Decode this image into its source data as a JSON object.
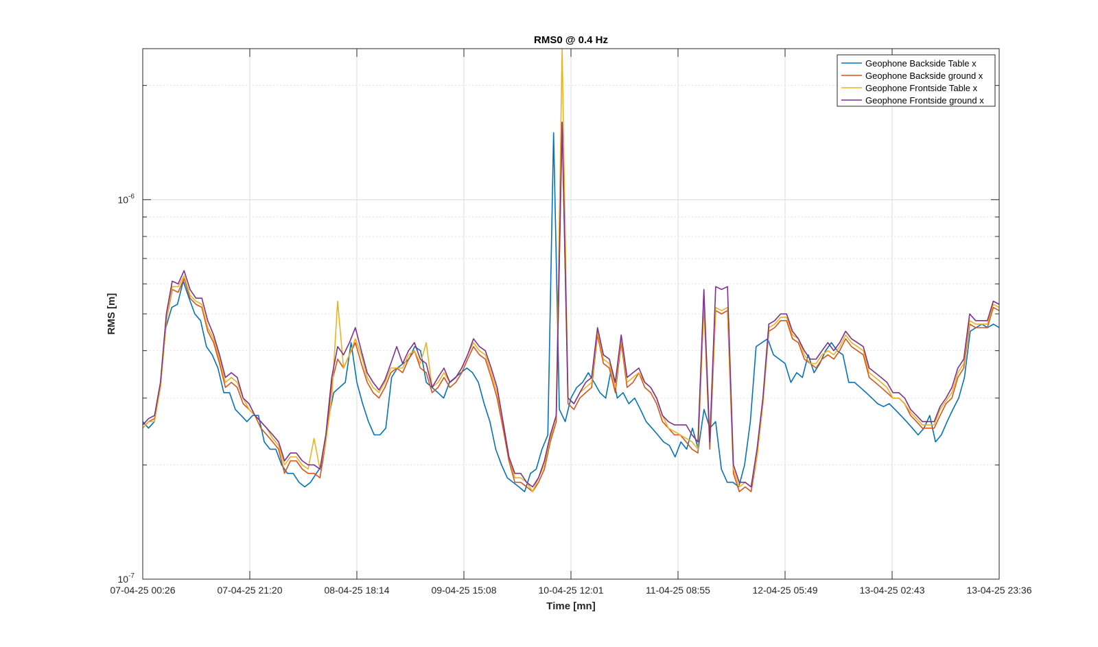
{
  "chart_data": {
    "type": "line",
    "title": "RMS0 @ 0.4 Hz",
    "xlabel": "Time [mn]",
    "ylabel": "RMS [m]",
    "yscale": "log",
    "ylim": [
      1e-07,
      2.5e-06
    ],
    "grid": true,
    "legend_position": "top-right",
    "x_tick_labels": [
      "07-04-25 00:26",
      "07-04-25 21:20",
      "08-04-25 18:14",
      "09-04-25 15:08",
      "10-04-25 12:01",
      "11-04-25 08:55",
      "12-04-25 05:49",
      "13-04-25 02:43",
      "13-04-25 23:36"
    ],
    "y_tick_labels": [
      {
        "base": "10",
        "exp": "-7",
        "value": 1e-07
      },
      {
        "base": "10",
        "exp": "-6",
        "value": 1e-06
      }
    ],
    "series": [
      {
        "name": "Geophone Backside Table x",
        "color": "#0072BD",
        "values": [
          2.6e-07,
          2.5e-07,
          2.6e-07,
          3.2e-07,
          4.6e-07,
          5.2e-07,
          5.3e-07,
          6.1e-07,
          5.5e-07,
          5e-07,
          4.8e-07,
          4.1e-07,
          3.9e-07,
          3.6e-07,
          3.1e-07,
          3.1e-07,
          2.8e-07,
          2.7e-07,
          2.6e-07,
          2.7e-07,
          2.7e-07,
          2.3e-07,
          2.2e-07,
          2.2e-07,
          2e-07,
          1.9e-07,
          1.9e-07,
          1.8e-07,
          1.75e-07,
          1.8e-07,
          1.9e-07,
          2e-07,
          2.6e-07,
          3.1e-07,
          3.2e-07,
          3.3e-07,
          4.2e-07,
          3.3e-07,
          2.9e-07,
          2.6e-07,
          2.4e-07,
          2.4e-07,
          2.5e-07,
          3.4e-07,
          3.6e-07,
          3.7e-07,
          3.8e-07,
          4.1e-07,
          4e-07,
          3.3e-07,
          3.2e-07,
          3.1e-07,
          3e-07,
          3.3e-07,
          3.4e-07,
          3.5e-07,
          3.6e-07,
          3.5e-07,
          3.3e-07,
          2.9e-07,
          2.6e-07,
          2.2e-07,
          2e-07,
          1.85e-07,
          1.8e-07,
          1.75e-07,
          1.7e-07,
          1.9e-07,
          1.95e-07,
          2.2e-07,
          2.4e-07,
          1.5e-06,
          2.8e-07,
          2.6e-07,
          3e-07,
          3.2e-07,
          3.3e-07,
          3.5e-07,
          3.3e-07,
          3.1e-07,
          3e-07,
          3.6e-07,
          3e-07,
          3.1e-07,
          2.9e-07,
          3e-07,
          2.8e-07,
          2.6e-07,
          2.5e-07,
          2.4e-07,
          2.3e-07,
          2.25e-07,
          2.1e-07,
          2.3e-07,
          2.2e-07,
          2.5e-07,
          2.2e-07,
          2.8e-07,
          2.5e-07,
          2.6e-07,
          1.95e-07,
          1.8e-07,
          1.8e-07,
          1.75e-07,
          2e-07,
          2.6e-07,
          4.1e-07,
          4.2e-07,
          4.3e-07,
          3.9e-07,
          3.8e-07,
          3.7e-07,
          3.3e-07,
          3.5e-07,
          3.4e-07,
          3.9e-07,
          3.5e-07,
          3.7e-07,
          4e-07,
          4.2e-07,
          4e-07,
          3.9e-07,
          3.3e-07,
          3.3e-07,
          3.2e-07,
          3.1e-07,
          3e-07,
          2.9e-07,
          2.85e-07,
          2.9e-07,
          2.8e-07,
          2.7e-07,
          2.6e-07,
          2.5e-07,
          2.4e-07,
          2.5e-07,
          2.7e-07,
          2.3e-07,
          2.4e-07,
          2.6e-07,
          2.8e-07,
          3e-07,
          3.4e-07,
          4.5e-07,
          4.6e-07,
          4.7e-07,
          4.6e-07,
          4.7e-07,
          4.6e-07
        ]
      },
      {
        "name": "Geophone Backside ground x",
        "color": "#D95319",
        "values": [
          2.5e-07,
          2.6e-07,
          2.65e-07,
          3.2e-07,
          4.8e-07,
          5.8e-07,
          5.7e-07,
          6.2e-07,
          5.5e-07,
          5.3e-07,
          5.2e-07,
          4.5e-07,
          4.2e-07,
          3.7e-07,
          3.2e-07,
          3.3e-07,
          3.2e-07,
          2.9e-07,
          2.8e-07,
          2.7e-07,
          2.5e-07,
          2.4e-07,
          2.3e-07,
          2.2e-07,
          1.9e-07,
          2.05e-07,
          2.05e-07,
          1.95e-07,
          1.9e-07,
          1.9e-07,
          1.85e-07,
          2.3e-07,
          3.3e-07,
          3.8e-07,
          3.6e-07,
          3.9e-07,
          4.2e-07,
          3.7e-07,
          3.3e-07,
          3.1e-07,
          3e-07,
          3.2e-07,
          3.5e-07,
          3.6e-07,
          3.5e-07,
          3.8e-07,
          4e-07,
          3.6e-07,
          3.5e-07,
          3.1e-07,
          3.2e-07,
          3.4e-07,
          3.2e-07,
          3.3e-07,
          3.5e-07,
          3.8e-07,
          4.1e-07,
          3.9e-07,
          3.8e-07,
          3.4e-07,
          3e-07,
          2.5e-07,
          2.05e-07,
          1.8e-07,
          1.8e-07,
          1.75e-07,
          1.7e-07,
          1.8e-07,
          1.95e-07,
          2.3e-07,
          2.6e-07,
          1.6e-06,
          2.9e-07,
          2.8e-07,
          3e-07,
          3.1e-07,
          3.2e-07,
          4.4e-07,
          3.7e-07,
          3.6e-07,
          3.1e-07,
          4.2e-07,
          3.2e-07,
          3.3e-07,
          3.5e-07,
          3.2e-07,
          3.1e-07,
          2.9e-07,
          2.6e-07,
          2.5e-07,
          2.4e-07,
          2.4e-07,
          2.3e-07,
          2.2e-07,
          2.15e-07,
          5.3e-07,
          2.2e-07,
          5.1e-07,
          5e-07,
          5.1e-07,
          1.9e-07,
          1.7e-07,
          1.75e-07,
          1.7e-07,
          2.1e-07,
          2.9e-07,
          4.5e-07,
          4.6e-07,
          4.8e-07,
          4.8e-07,
          4.3e-07,
          4.2e-07,
          3.8e-07,
          3.7e-07,
          3.6e-07,
          3.8e-07,
          3.9e-07,
          3.8e-07,
          4e-07,
          4.3e-07,
          4.1e-07,
          4e-07,
          3.9e-07,
          3.4e-07,
          3.3e-07,
          3.2e-07,
          3.1e-07,
          3e-07,
          3e-07,
          2.9e-07,
          2.7e-07,
          2.6e-07,
          2.5e-07,
          2.5e-07,
          2.5e-07,
          2.7e-07,
          2.9e-07,
          3e-07,
          3.4e-07,
          3.6e-07,
          4.7e-07,
          4.6e-07,
          4.6e-07,
          4.6e-07,
          5.2e-07,
          5.1e-07
        ]
      },
      {
        "name": "Geophone Frontside Table x",
        "color": "#EDB120",
        "values": [
          2.5e-07,
          2.6e-07,
          2.6e-07,
          3.2e-07,
          4.8e-07,
          5.9e-07,
          5.9e-07,
          6.3e-07,
          5.6e-07,
          5.4e-07,
          5.3e-07,
          4.6e-07,
          4.3e-07,
          3.8e-07,
          3.3e-07,
          3.4e-07,
          3.3e-07,
          3e-07,
          2.8e-07,
          2.7e-07,
          2.6e-07,
          2.5e-07,
          2.35e-07,
          2.25e-07,
          2e-07,
          2.1e-07,
          2.1e-07,
          2e-07,
          1.95e-07,
          2.35e-07,
          1.95e-07,
          2.3e-07,
          3e-07,
          5.4e-07,
          3.6e-07,
          3.9e-07,
          4.3e-07,
          3.9e-07,
          3.4e-07,
          3.2e-07,
          3.1e-07,
          3.3e-07,
          3.6e-07,
          3.6e-07,
          3.6e-07,
          3.9e-07,
          4e-07,
          3.7e-07,
          4.2e-07,
          3.2e-07,
          3.3e-07,
          3.5e-07,
          3.3e-07,
          3.4e-07,
          3.6e-07,
          3.9e-07,
          4.2e-07,
          4e-07,
          3.9e-07,
          3.5e-07,
          3.1e-07,
          2.6e-07,
          2.1e-07,
          1.85e-07,
          1.85e-07,
          1.8e-07,
          1.7e-07,
          1.85e-07,
          2e-07,
          2.35e-07,
          2.7e-07,
          2.5e-06,
          3e-07,
          2.9e-07,
          3.1e-07,
          3.2e-07,
          3.3e-07,
          4.5e-07,
          3.8e-07,
          3.7e-07,
          3.2e-07,
          4.3e-07,
          3.3e-07,
          3.4e-07,
          3.5e-07,
          3.3e-07,
          3.2e-07,
          3e-07,
          2.7e-07,
          2.5e-07,
          2.45e-07,
          2.4e-07,
          2.35e-07,
          2.3e-07,
          2.2e-07,
          5.4e-07,
          2.3e-07,
          5.2e-07,
          5.1e-07,
          5.2e-07,
          1.95e-07,
          1.75e-07,
          1.8e-07,
          1.75e-07,
          2.1e-07,
          2.9e-07,
          4.6e-07,
          4.7e-07,
          4.9e-07,
          4.9e-07,
          4.4e-07,
          4.3e-07,
          3.9e-07,
          3.7e-07,
          3.7e-07,
          3.9e-07,
          4e-07,
          3.9e-07,
          4.1e-07,
          4.4e-07,
          4.2e-07,
          4.1e-07,
          4e-07,
          3.5e-07,
          3.4e-07,
          3.3e-07,
          3.2e-07,
          3e-07,
          3e-07,
          2.9e-07,
          2.75e-07,
          2.65e-07,
          2.55e-07,
          2.55e-07,
          2.55e-07,
          2.8e-07,
          2.95e-07,
          3.1e-07,
          3.5e-07,
          3.7e-07,
          4.8e-07,
          4.7e-07,
          4.7e-07,
          4.7e-07,
          5.3e-07,
          5.2e-07
        ]
      },
      {
        "name": "Geophone Frontside ground x",
        "color": "#7E2F8E",
        "values": [
          2.55e-07,
          2.65e-07,
          2.7e-07,
          3.3e-07,
          5e-07,
          6.1e-07,
          6e-07,
          6.5e-07,
          5.8e-07,
          5.5e-07,
          5.5e-07,
          4.8e-07,
          4.4e-07,
          3.9e-07,
          3.4e-07,
          3.5e-07,
          3.4e-07,
          3e-07,
          2.9e-07,
          2.7e-07,
          2.6e-07,
          2.5e-07,
          2.4e-07,
          2.3e-07,
          2.05e-07,
          2.15e-07,
          2.15e-07,
          2.05e-07,
          2e-07,
          2e-07,
          1.95e-07,
          2.4e-07,
          3.4e-07,
          4.1e-07,
          3.9e-07,
          4.2e-07,
          4.6e-07,
          4e-07,
          3.5e-07,
          3.3e-07,
          3.15e-07,
          3.35e-07,
          3.7e-07,
          4.1e-07,
          3.7e-07,
          4e-07,
          4.2e-07,
          3.8e-07,
          3.7e-07,
          3.2e-07,
          3.4e-07,
          3.6e-07,
          3.3e-07,
          3.4e-07,
          3.6e-07,
          3.9e-07,
          4.3e-07,
          4.1e-07,
          4e-07,
          3.6e-07,
          3.2e-07,
          2.6e-07,
          2.1e-07,
          1.9e-07,
          1.9e-07,
          1.8e-07,
          1.75e-07,
          1.85e-07,
          2.05e-07,
          2.4e-07,
          2.7e-07,
          1.6e-06,
          3e-07,
          2.9e-07,
          3.1e-07,
          3.3e-07,
          3.4e-07,
          4.6e-07,
          3.9e-07,
          3.8e-07,
          3.3e-07,
          4.4e-07,
          3.4e-07,
          3.5e-07,
          3.6e-07,
          3.3e-07,
          3.2e-07,
          3e-07,
          2.7e-07,
          2.6e-07,
          2.55e-07,
          2.55e-07,
          2.55e-07,
          2.4e-07,
          2.3e-07,
          5.8e-07,
          2.3e-07,
          5.9e-07,
          5.8e-07,
          5.9e-07,
          2e-07,
          1.8e-07,
          1.8e-07,
          1.75e-07,
          2.2e-07,
          3e-07,
          4.7e-07,
          4.8e-07,
          5e-07,
          5e-07,
          4.5e-07,
          4.3e-07,
          4e-07,
          3.8e-07,
          3.8e-07,
          4e-07,
          4.2e-07,
          4e-07,
          4.2e-07,
          4.5e-07,
          4.3e-07,
          4.2e-07,
          4.1e-07,
          3.6e-07,
          3.5e-07,
          3.4e-07,
          3.3e-07,
          3.1e-07,
          3.1e-07,
          3e-07,
          2.8e-07,
          2.7e-07,
          2.6e-07,
          2.6e-07,
          2.6e-07,
          2.85e-07,
          3e-07,
          3.2e-07,
          3.6e-07,
          3.8e-07,
          5e-07,
          4.8e-07,
          4.8e-07,
          4.8e-07,
          5.4e-07,
          5.3e-07
        ]
      }
    ]
  }
}
